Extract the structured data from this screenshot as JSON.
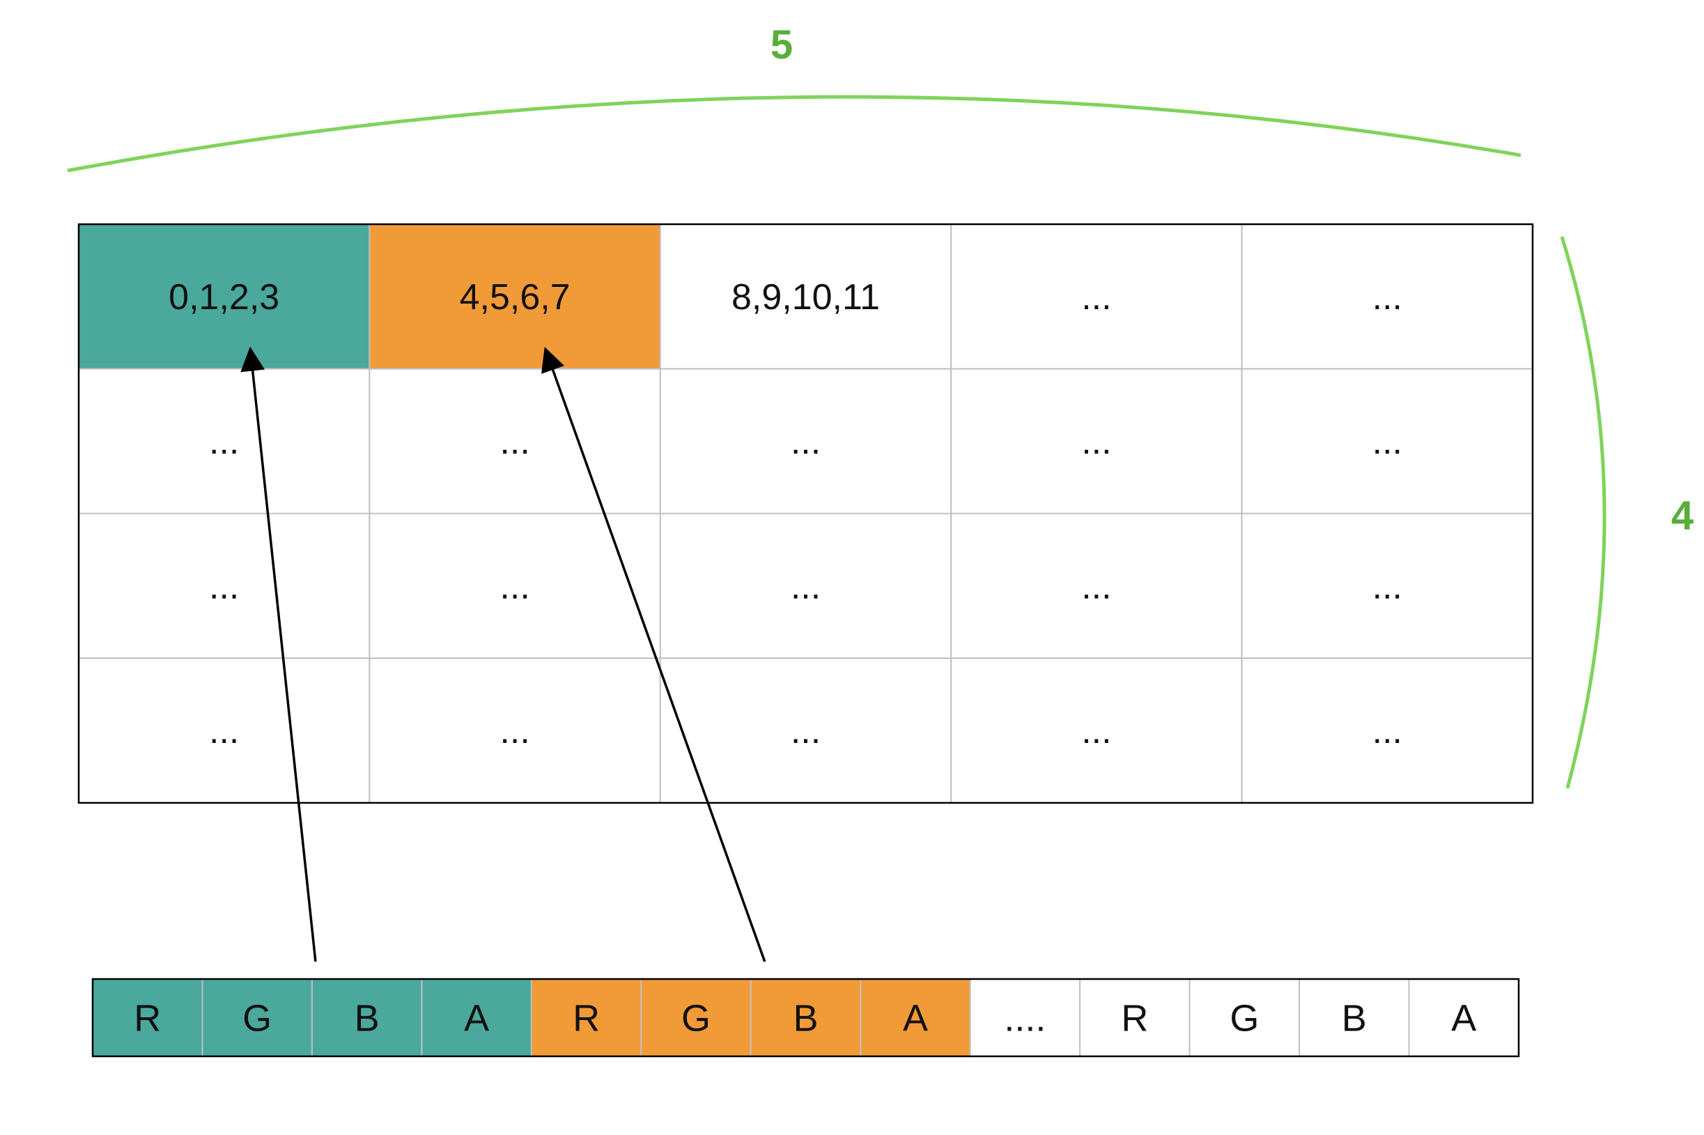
{
  "colors": {
    "teal": "#4ba89c",
    "orange": "#f19a38",
    "bracket_green": "#7fd35a",
    "label_green": "#5aad3a",
    "grid_line": "#c0c0c0",
    "border": "#000000",
    "arrow": "#000000"
  },
  "dimensions": {
    "width_label": "5",
    "height_label": "4"
  },
  "grid": {
    "rows": [
      [
        {
          "text": "0,1,2,3",
          "fill": "teal"
        },
        {
          "text": "4,5,6,7",
          "fill": "orange"
        },
        {
          "text": "8,9,10,11",
          "fill": "none"
        },
        {
          "text": "...",
          "fill": "none"
        },
        {
          "text": "...",
          "fill": "none"
        }
      ],
      [
        {
          "text": "...",
          "fill": "none"
        },
        {
          "text": "...",
          "fill": "none"
        },
        {
          "text": "...",
          "fill": "none"
        },
        {
          "text": "...",
          "fill": "none"
        },
        {
          "text": "...",
          "fill": "none"
        }
      ],
      [
        {
          "text": "...",
          "fill": "none"
        },
        {
          "text": "...",
          "fill": "none"
        },
        {
          "text": "...",
          "fill": "none"
        },
        {
          "text": "...",
          "fill": "none"
        },
        {
          "text": "...",
          "fill": "none"
        }
      ],
      [
        {
          "text": "...",
          "fill": "none"
        },
        {
          "text": "...",
          "fill": "none"
        },
        {
          "text": "...",
          "fill": "none"
        },
        {
          "text": "...",
          "fill": "none"
        },
        {
          "text": "...",
          "fill": "none"
        }
      ]
    ]
  },
  "byte_strip": [
    {
      "text": "R",
      "fill": "teal"
    },
    {
      "text": "G",
      "fill": "teal"
    },
    {
      "text": "B",
      "fill": "teal"
    },
    {
      "text": "A",
      "fill": "teal"
    },
    {
      "text": "R",
      "fill": "orange"
    },
    {
      "text": "G",
      "fill": "orange"
    },
    {
      "text": "B",
      "fill": "orange"
    },
    {
      "text": "A",
      "fill": "orange"
    },
    {
      "text": "....",
      "fill": "none"
    },
    {
      "text": "R",
      "fill": "none"
    },
    {
      "text": "G",
      "fill": "none"
    },
    {
      "text": "B",
      "fill": "none"
    },
    {
      "text": "A",
      "fill": "none"
    }
  ],
  "arrows": [
    {
      "from_byte_group": 0,
      "to_cell": [
        0,
        0
      ]
    },
    {
      "from_byte_group": 1,
      "to_cell": [
        0,
        1
      ]
    }
  ]
}
